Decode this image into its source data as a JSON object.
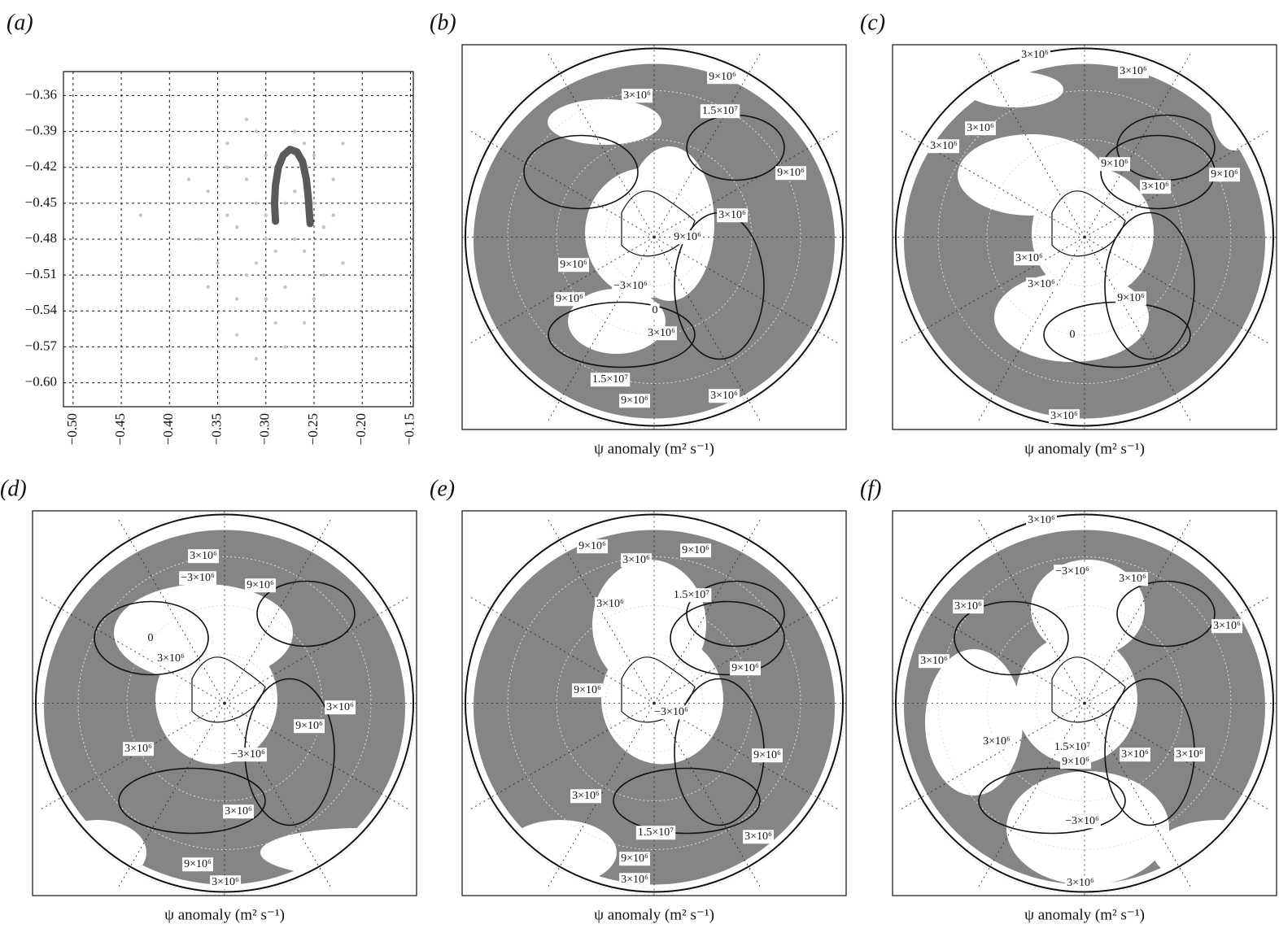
{
  "chart_data": {
    "type": "scatter",
    "label": "(a)",
    "xlim": [
      -0.51,
      -0.147
    ],
    "ylim": [
      -0.62,
      -0.34
    ],
    "xticks": [
      {
        "value": -0.5,
        "label": "−0.50"
      },
      {
        "value": -0.45,
        "label": "−0.45"
      },
      {
        "value": -0.4,
        "label": "−0.40"
      },
      {
        "value": -0.35,
        "label": "−0.35"
      },
      {
        "value": -0.3,
        "label": "−0.30"
      },
      {
        "value": -0.25,
        "label": "−0.25"
      },
      {
        "value": -0.2,
        "label": "−0.20"
      },
      {
        "value": -0.15,
        "label": "−0.15"
      }
    ],
    "yticks": [
      {
        "value": -0.36,
        "label": "−0.36"
      },
      {
        "value": -0.39,
        "label": "−0.39"
      },
      {
        "value": -0.42,
        "label": "−0.42"
      },
      {
        "value": -0.45,
        "label": "−0.45"
      },
      {
        "value": -0.48,
        "label": "−0.48"
      },
      {
        "value": -0.51,
        "label": "−0.51"
      },
      {
        "value": -0.54,
        "label": "−0.54"
      },
      {
        "value": -0.57,
        "label": "−0.57"
      },
      {
        "value": -0.6,
        "label": "−0.60"
      }
    ],
    "grid": true,
    "series": [
      {
        "color": "#c4c4c4",
        "x": [
          -0.36,
          -0.34,
          -0.33,
          -0.32,
          -0.31,
          -0.3,
          -0.29,
          -0.28,
          -0.27,
          -0.26,
          -0.25,
          -0.24,
          -0.23,
          -0.22,
          -0.35,
          -0.33,
          -0.31,
          -0.29,
          -0.27,
          -0.25,
          -0.23,
          -0.34,
          -0.32,
          -0.3,
          -0.28,
          -0.26,
          -0.24,
          -0.37,
          -0.38,
          -0.33,
          -0.31,
          -0.29,
          -0.27,
          -0.3,
          -0.32,
          -0.28,
          -0.36,
          -0.25,
          -0.22,
          -0.43,
          -0.3,
          -0.26,
          -0.34,
          -0.31,
          -0.29
        ],
        "values": [
          -0.44,
          -0.4,
          -0.47,
          -0.43,
          -0.5,
          -0.46,
          -0.42,
          -0.52,
          -0.44,
          -0.49,
          -0.41,
          -0.47,
          -0.43,
          -0.5,
          -0.5,
          -0.53,
          -0.39,
          -0.55,
          -0.48,
          -0.53,
          -0.46,
          -0.46,
          -0.51,
          -0.41,
          -0.45,
          -0.4,
          -0.51,
          -0.48,
          -0.43,
          -0.56,
          -0.45,
          -0.49,
          -0.39,
          -0.53,
          -0.38,
          -0.57,
          -0.52,
          -0.45,
          -0.4,
          -0.46,
          -0.48,
          -0.55,
          -0.42,
          -0.58,
          -0.44
        ]
      },
      {
        "type": "line",
        "color": "#5a5a5a",
        "x": [
          -0.29,
          -0.291,
          -0.29,
          -0.287,
          -0.282,
          -0.275,
          -0.268,
          -0.262,
          -0.258,
          -0.256,
          -0.255,
          -0.254
        ],
        "values": [
          -0.465,
          -0.45,
          -0.435,
          -0.42,
          -0.41,
          -0.405,
          -0.407,
          -0.415,
          -0.43,
          -0.445,
          -0.457,
          -0.467
        ]
      }
    ]
  },
  "maps": [
    {
      "label": "(b)",
      "xlabel": "ψ anomaly (m² s⁻¹)",
      "contour_labels": [
        "9×10⁶",
        "3×10⁶",
        "1.5×10⁷",
        "9×10⁶",
        "3×10⁶",
        "9×10⁶",
        "9×10⁶",
        "−3×10⁶",
        "9×10⁶",
        "0",
        "3×10⁶",
        "1.5×10⁷",
        "9×10⁶",
        "3×10⁶"
      ]
    },
    {
      "label": "(c)",
      "xlabel": "ψ anomaly (m² s⁻¹)",
      "contour_labels": [
        "3×10⁶",
        "3×10⁶",
        "3×10⁶",
        "3×10⁶",
        "9×10⁶",
        "9×10⁶",
        "3×10⁶",
        "3×10⁶",
        "3×10⁶",
        "9×10⁶",
        "0",
        "3×10⁶"
      ]
    },
    {
      "label": "(d)",
      "xlabel": "ψ anomaly (m² s⁻¹)",
      "contour_labels": [
        "3×10⁶",
        "−3×10⁶",
        "9×10⁶",
        "0",
        "3×10⁶",
        "3×10⁶",
        "9×10⁶",
        "3×10⁶",
        "−3×10⁶",
        "3×10⁶",
        "9×10⁶",
        "3×10⁶"
      ]
    },
    {
      "label": "(e)",
      "xlabel": "ψ anomaly (m² s⁻¹)",
      "contour_labels": [
        "9×10⁶",
        "3×10⁶",
        "9×10⁶",
        "1.5×10⁷",
        "3×10⁶",
        "9×10⁶",
        "9×10⁶",
        "−3×10⁶",
        "9×10⁶",
        "3×10⁶",
        "1.5×10⁷",
        "3×10⁶",
        "9×10⁶",
        "3×10⁶"
      ]
    },
    {
      "label": "(f)",
      "xlabel": "ψ anomaly (m² s⁻¹)",
      "contour_labels": [
        "3×10⁶",
        "−3×10⁶",
        "3×10⁶",
        "3×10⁶",
        "3×10⁶",
        "3×10⁶",
        "3×10⁶",
        "1.5×10⁷",
        "9×10⁶",
        "3×10⁶",
        "3×10⁶",
        "−3×10⁶",
        "3×10⁶"
      ]
    }
  ]
}
